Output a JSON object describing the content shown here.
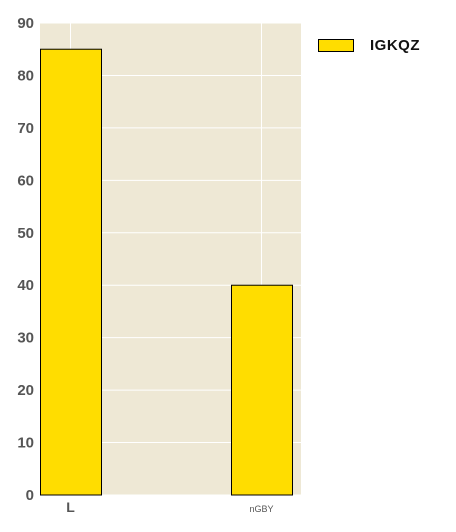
{
  "chart_data": {
    "type": "bar",
    "categories": [
      "L",
      "nGBY"
    ],
    "series": [
      {
        "name": "IGKQZ",
        "values": [
          85,
          40
        ],
        "color": "#FFDD00"
      }
    ],
    "ylim": [
      0,
      90
    ],
    "yticks": [
      0,
      10,
      20,
      30,
      40,
      50,
      60,
      70,
      80,
      90
    ],
    "grid": true,
    "legend": "top-right",
    "plot_background": "#EEE8D5",
    "axis_label_color": "#555555"
  }
}
